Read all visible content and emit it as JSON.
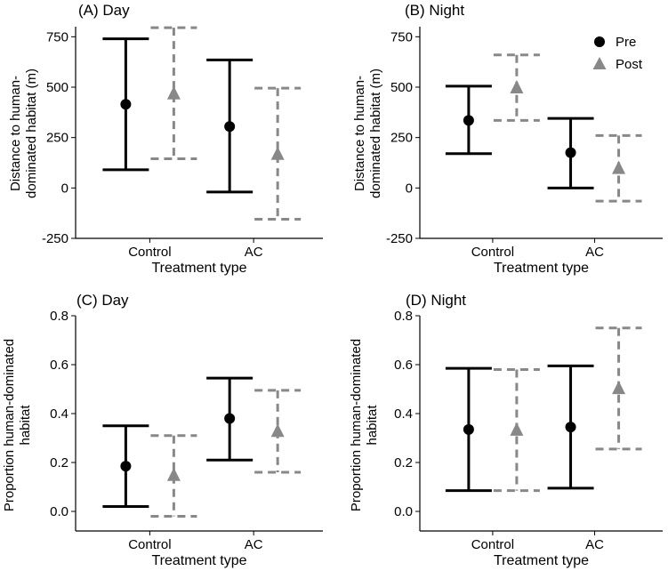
{
  "figure": {
    "legend": {
      "items": [
        {
          "label": "Pre",
          "shape": "circle",
          "color": "#000000"
        },
        {
          "label": "Post",
          "shape": "triangle",
          "color": "#888888"
        }
      ]
    }
  },
  "chart_data": [
    {
      "type": "errorbar",
      "title": "(A) Day",
      "xlabel": "Treatment type",
      "ylabel": [
        "Distance to human-",
        "dominated habitat (m)"
      ],
      "categories": [
        "Control",
        "AC"
      ],
      "ylim": [
        -250,
        800
      ],
      "yticks": [
        -250,
        0,
        250,
        500,
        750
      ],
      "yticklabels": [
        "-250",
        "0",
        "250",
        "500",
        "750"
      ],
      "series": [
        {
          "name": "Pre",
          "marker": "circle",
          "color": "#000000",
          "dashed": false,
          "points": [
            {
              "x": "Control",
              "y": 415,
              "low": 90,
              "high": 740
            },
            {
              "x": "AC",
              "y": 305,
              "low": -20,
              "high": 635
            }
          ]
        },
        {
          "name": "Post",
          "marker": "triangle",
          "color": "#888888",
          "dashed": true,
          "points": [
            {
              "x": "Control",
              "y": 470,
              "low": 145,
              "high": 795
            },
            {
              "x": "AC",
              "y": 170,
              "low": -155,
              "high": 495
            }
          ]
        }
      ]
    },
    {
      "type": "errorbar",
      "title": "(B) Night",
      "xlabel": "Treatment type",
      "ylabel": [
        "Distance to human-",
        "dominated habitat (m)"
      ],
      "categories": [
        "Control",
        "AC"
      ],
      "ylim": [
        -250,
        800
      ],
      "yticks": [
        -250,
        0,
        250,
        500,
        750
      ],
      "yticklabels": [
        "-250",
        "0",
        "250",
        "500",
        "750"
      ],
      "series": [
        {
          "name": "Pre",
          "marker": "circle",
          "color": "#000000",
          "dashed": false,
          "points": [
            {
              "x": "Control",
              "y": 335,
              "low": 170,
              "high": 505
            },
            {
              "x": "AC",
              "y": 175,
              "low": 0,
              "high": 345
            }
          ]
        },
        {
          "name": "Post",
          "marker": "triangle",
          "color": "#888888",
          "dashed": true,
          "points": [
            {
              "x": "Control",
              "y": 500,
              "low": 335,
              "high": 660
            },
            {
              "x": "AC",
              "y": 100,
              "low": -65,
              "high": 260
            }
          ]
        }
      ]
    },
    {
      "type": "errorbar",
      "title": "(C) Day",
      "xlabel": "Treatment type",
      "ylabel": [
        "Proportion human-dominated",
        "habitat"
      ],
      "categories": [
        "Control",
        "AC"
      ],
      "ylim": [
        -0.08,
        0.8
      ],
      "yticks": [
        0.0,
        0.2,
        0.4,
        0.6,
        0.8
      ],
      "yticklabels": [
        "0.0",
        "0.2",
        "0.4",
        "0.6",
        "0.8"
      ],
      "series": [
        {
          "name": "Pre",
          "marker": "circle",
          "color": "#000000",
          "dashed": false,
          "points": [
            {
              "x": "Control",
              "y": 0.185,
              "low": 0.02,
              "high": 0.35
            },
            {
              "x": "AC",
              "y": 0.38,
              "low": 0.21,
              "high": 0.545
            }
          ]
        },
        {
          "name": "Post",
          "marker": "triangle",
          "color": "#888888",
          "dashed": true,
          "points": [
            {
              "x": "Control",
              "y": 0.15,
              "low": -0.02,
              "high": 0.31
            },
            {
              "x": "AC",
              "y": 0.33,
              "low": 0.16,
              "high": 0.495
            }
          ]
        }
      ]
    },
    {
      "type": "errorbar",
      "title": "(D) Night",
      "xlabel": "Treatment type",
      "ylabel": [
        "Proportion human-dominated",
        "habitat"
      ],
      "categories": [
        "Control",
        "AC"
      ],
      "ylim": [
        -0.08,
        0.8
      ],
      "yticks": [
        0.0,
        0.2,
        0.4,
        0.6,
        0.8
      ],
      "yticklabels": [
        "0.0",
        "0.2",
        "0.4",
        "0.6",
        "0.8"
      ],
      "series": [
        {
          "name": "Pre",
          "marker": "circle",
          "color": "#000000",
          "dashed": false,
          "points": [
            {
              "x": "Control",
              "y": 0.335,
              "low": 0.085,
              "high": 0.585
            },
            {
              "x": "AC",
              "y": 0.345,
              "low": 0.095,
              "high": 0.595
            }
          ]
        },
        {
          "name": "Post",
          "marker": "triangle",
          "color": "#888888",
          "dashed": true,
          "points": [
            {
              "x": "Control",
              "y": 0.335,
              "low": 0.085,
              "high": 0.58
            },
            {
              "x": "AC",
              "y": 0.505,
              "low": 0.255,
              "high": 0.75
            }
          ]
        }
      ]
    }
  ]
}
